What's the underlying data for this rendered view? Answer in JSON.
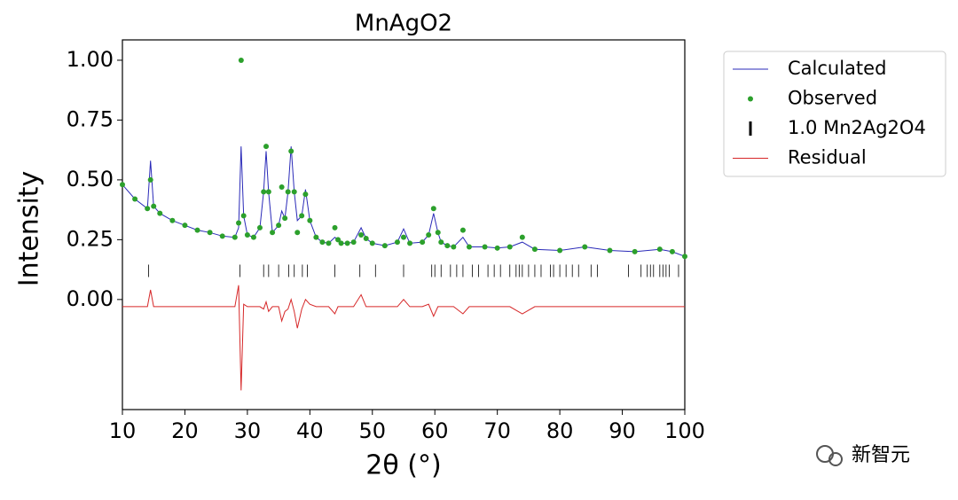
{
  "chart_data": {
    "type": "line",
    "title": "MnAgO2",
    "x_label": "2θ (°)",
    "y_label": "Intensity",
    "xlim": [
      10,
      100
    ],
    "ylim": [
      -0.46,
      1.085
    ],
    "xticks": [
      10,
      20,
      30,
      40,
      50,
      60,
      70,
      80,
      90,
      100
    ],
    "yticks": [
      {
        "value": 0,
        "label": "0.00"
      },
      {
        "value": 0.25,
        "label": "0.25"
      },
      {
        "value": 0.5,
        "label": "0.50"
      },
      {
        "value": 0.75,
        "label": "0.75"
      },
      {
        "value": 1,
        "label": "1.00"
      }
    ],
    "grid": false,
    "legend": "outside-upper-right",
    "x": [
      10,
      12,
      14,
      14.5,
      15,
      16,
      18,
      20,
      22,
      24,
      26,
      28,
      28.6,
      29,
      29.4,
      30,
      31,
      32,
      32.6,
      33,
      33.4,
      34,
      35,
      35.5,
      36,
      36.5,
      37,
      37.5,
      38,
      38.7,
      39.3,
      40,
      41,
      42,
      43,
      44,
      44.5,
      45,
      46,
      47,
      48.2,
      49,
      50,
      52,
      54,
      55,
      56,
      58,
      59,
      59.8,
      60.5,
      61,
      62,
      63,
      64.5,
      65.5,
      68,
      70,
      72,
      74,
      76,
      80,
      84,
      88,
      92,
      96,
      98,
      100
    ],
    "series": [
      {
        "name": "Calculated",
        "type": "line",
        "color": "#2a2ab8",
        "values": [
          0.48,
          0.42,
          0.38,
          0.58,
          0.39,
          0.36,
          0.33,
          0.31,
          0.29,
          0.28,
          0.265,
          0.26,
          0.3,
          0.64,
          0.35,
          0.27,
          0.26,
          0.3,
          0.45,
          0.62,
          0.45,
          0.28,
          0.31,
          0.37,
          0.34,
          0.45,
          0.64,
          0.45,
          0.33,
          0.35,
          0.46,
          0.33,
          0.26,
          0.24,
          0.235,
          0.26,
          0.25,
          0.235,
          0.235,
          0.24,
          0.3,
          0.255,
          0.235,
          0.225,
          0.24,
          0.295,
          0.235,
          0.24,
          0.27,
          0.36,
          0.28,
          0.24,
          0.225,
          0.22,
          0.26,
          0.22,
          0.22,
          0.215,
          0.22,
          0.24,
          0.21,
          0.205,
          0.22,
          0.205,
          0.2,
          0.21,
          0.2,
          0.18
        ]
      },
      {
        "name": "Observed",
        "type": "scatter",
        "color": "#2ca02c",
        "values": [
          0.48,
          0.42,
          0.38,
          0.5,
          0.39,
          0.36,
          0.33,
          0.31,
          0.29,
          0.28,
          0.265,
          0.26,
          0.32,
          1.0,
          0.35,
          0.27,
          0.26,
          0.3,
          0.45,
          0.64,
          0.45,
          0.28,
          0.31,
          0.47,
          0.34,
          0.45,
          0.62,
          0.45,
          0.28,
          0.35,
          0.44,
          0.33,
          0.26,
          0.24,
          0.235,
          0.3,
          0.25,
          0.235,
          0.235,
          0.24,
          0.27,
          0.255,
          0.235,
          0.225,
          0.24,
          0.26,
          0.235,
          0.24,
          0.27,
          0.38,
          0.28,
          0.24,
          0.225,
          0.22,
          0.29,
          0.22,
          0.22,
          0.215,
          0.22,
          0.26,
          0.21,
          0.205,
          0.22,
          0.205,
          0.2,
          0.21,
          0.2,
          0.18
        ]
      },
      {
        "name": "1.0 Mn2Ag2O4",
        "type": "ticks",
        "color": "#000000",
        "x": [
          14.2,
          28.8,
          32.6,
          33.4,
          35,
          36.6,
          37.5,
          38.8,
          39.6,
          44,
          48,
          50.5,
          55,
          59.5,
          60,
          61,
          62.5,
          63.5,
          64.5,
          66,
          67,
          68.5,
          69.5,
          70.5,
          72,
          73,
          73.5,
          74,
          75,
          76,
          77,
          78.5,
          79,
          80,
          81,
          82,
          83,
          85,
          86,
          91,
          93,
          94,
          94.5,
          95,
          96,
          96.5,
          97,
          97.5,
          99
        ]
      },
      {
        "name": "Residual",
        "type": "line",
        "color": "#d62728",
        "values": [
          -0.03,
          -0.03,
          -0.03,
          0.04,
          -0.03,
          -0.03,
          -0.03,
          -0.03,
          -0.03,
          -0.03,
          -0.03,
          -0.03,
          0.06,
          -0.38,
          -0.02,
          -0.03,
          -0.03,
          -0.03,
          -0.04,
          -0.01,
          -0.05,
          -0.03,
          -0.03,
          -0.09,
          -0.05,
          -0.04,
          0.0,
          -0.05,
          -0.12,
          -0.04,
          0.0,
          -0.02,
          -0.03,
          -0.03,
          -0.03,
          -0.06,
          -0.03,
          -0.03,
          -0.03,
          -0.03,
          0.02,
          -0.03,
          -0.03,
          -0.03,
          -0.03,
          0.0,
          -0.03,
          -0.03,
          -0.02,
          -0.07,
          -0.03,
          -0.03,
          -0.03,
          -0.03,
          -0.06,
          -0.03,
          -0.03,
          -0.03,
          -0.03,
          -0.06,
          -0.03,
          -0.03,
          -0.03,
          -0.03,
          -0.03,
          -0.03,
          -0.03,
          -0.03
        ]
      }
    ]
  },
  "watermark": "新智元"
}
